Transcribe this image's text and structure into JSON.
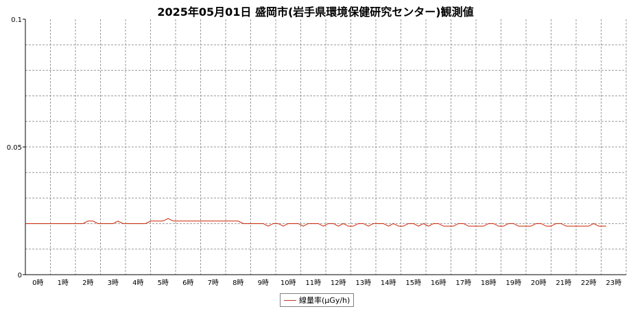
{
  "colors": {
    "line": "#cc2200",
    "grid": "#999999",
    "axis": "#000000"
  },
  "chart_data": {
    "type": "line",
    "title": "2025年05月01日 盛岡市(岩手県環境保健研究センター)観測値",
    "ylim": [
      0,
      0.1
    ],
    "y_ticks": [
      "0",
      "0.05",
      "0.1"
    ],
    "x_ticks": [
      "0時",
      "1時",
      "2時",
      "3時",
      "4時",
      "5時",
      "6時",
      "7時",
      "8時",
      "9時",
      "10時",
      "11時",
      "12時",
      "13時",
      "14時",
      "15時",
      "16時",
      "17時",
      "18時",
      "19時",
      "20時",
      "21時",
      "22時",
      "23時"
    ],
    "xlim": [
      0,
      24
    ],
    "grid": true,
    "legend_position": "bottom-center",
    "series": [
      {
        "name": "線量率(μGy/h)",
        "points": [
          [
            0.0,
            0.02
          ],
          [
            2.3,
            0.02
          ],
          [
            2.5,
            0.021
          ],
          [
            2.7,
            0.021
          ],
          [
            2.9,
            0.02
          ],
          [
            3.5,
            0.02
          ],
          [
            3.7,
            0.021
          ],
          [
            3.9,
            0.02
          ],
          [
            4.8,
            0.02
          ],
          [
            5.0,
            0.021
          ],
          [
            5.5,
            0.021
          ],
          [
            5.7,
            0.022
          ],
          [
            5.9,
            0.021
          ],
          [
            8.5,
            0.021
          ],
          [
            8.7,
            0.02
          ],
          [
            9.5,
            0.02
          ],
          [
            9.7,
            0.019
          ],
          [
            9.9,
            0.02
          ],
          [
            10.1,
            0.02
          ],
          [
            10.3,
            0.019
          ],
          [
            10.5,
            0.02
          ],
          [
            10.9,
            0.02
          ],
          [
            11.1,
            0.019
          ],
          [
            11.3,
            0.02
          ],
          [
            11.7,
            0.02
          ],
          [
            11.9,
            0.019
          ],
          [
            12.1,
            0.02
          ],
          [
            12.3,
            0.02
          ],
          [
            12.5,
            0.019
          ],
          [
            12.7,
            0.02
          ],
          [
            12.9,
            0.019
          ],
          [
            13.1,
            0.019
          ],
          [
            13.3,
            0.02
          ],
          [
            13.5,
            0.02
          ],
          [
            13.7,
            0.019
          ],
          [
            13.9,
            0.02
          ],
          [
            14.3,
            0.02
          ],
          [
            14.5,
            0.019
          ],
          [
            14.7,
            0.02
          ],
          [
            14.9,
            0.019
          ],
          [
            15.1,
            0.019
          ],
          [
            15.3,
            0.02
          ],
          [
            15.5,
            0.02
          ],
          [
            15.7,
            0.019
          ],
          [
            15.9,
            0.02
          ],
          [
            16.1,
            0.019
          ],
          [
            16.3,
            0.02
          ],
          [
            16.5,
            0.02
          ],
          [
            16.7,
            0.019
          ],
          [
            17.1,
            0.019
          ],
          [
            17.3,
            0.02
          ],
          [
            17.5,
            0.02
          ],
          [
            17.7,
            0.019
          ],
          [
            18.3,
            0.019
          ],
          [
            18.5,
            0.02
          ],
          [
            18.7,
            0.02
          ],
          [
            18.9,
            0.019
          ],
          [
            19.1,
            0.019
          ],
          [
            19.3,
            0.02
          ],
          [
            19.5,
            0.02
          ],
          [
            19.7,
            0.019
          ],
          [
            20.2,
            0.019
          ],
          [
            20.4,
            0.02
          ],
          [
            20.6,
            0.02
          ],
          [
            20.8,
            0.019
          ],
          [
            21.0,
            0.019
          ],
          [
            21.2,
            0.02
          ],
          [
            21.4,
            0.02
          ],
          [
            21.6,
            0.019
          ],
          [
            22.5,
            0.019
          ],
          [
            22.7,
            0.02
          ],
          [
            22.9,
            0.019
          ],
          [
            23.2,
            0.019
          ]
        ]
      }
    ]
  }
}
